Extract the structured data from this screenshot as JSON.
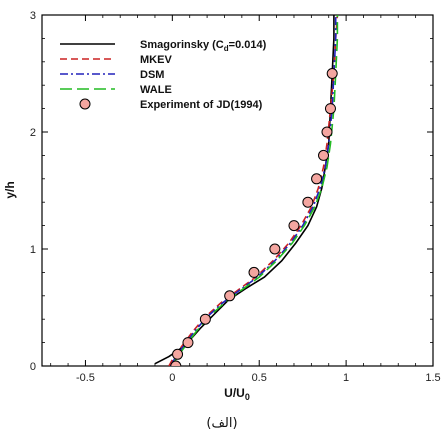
{
  "chart_data": {
    "type": "line",
    "xlabel": "U/U",
    "xlabel_sub": "0",
    "ylabel": "y/h",
    "xlim": [
      -0.75,
      1.5
    ],
    "ylim": [
      0,
      3
    ],
    "x_ticks": [
      -0.5,
      0,
      0.5,
      1,
      1.5
    ],
    "x_tick_labels": [
      "-0.5",
      "0",
      "0.5",
      "1",
      "1.5"
    ],
    "y_ticks": [
      0,
      1,
      2,
      3
    ],
    "y_tick_labels": [
      "0",
      "1",
      "2",
      "3"
    ],
    "legend_position": "top-left",
    "caption": "(الف)",
    "series": [
      {
        "name": "Smagorinsky (C",
        "name_sub": "d",
        "name_suffix": "=0.014)",
        "style": "solid",
        "color": "#000000",
        "points": [
          [
            -0.1,
            0.02
          ],
          [
            -0.02,
            0.08
          ],
          [
            0.04,
            0.14
          ],
          [
            0.1,
            0.22
          ],
          [
            0.16,
            0.32
          ],
          [
            0.24,
            0.44
          ],
          [
            0.32,
            0.56
          ],
          [
            0.42,
            0.66
          ],
          [
            0.53,
            0.76
          ],
          [
            0.63,
            0.9
          ],
          [
            0.71,
            1.05
          ],
          [
            0.78,
            1.2
          ],
          [
            0.83,
            1.36
          ],
          [
            0.86,
            1.52
          ],
          [
            0.88,
            1.7
          ],
          [
            0.9,
            1.9
          ],
          [
            0.91,
            2.2
          ],
          [
            0.92,
            2.5
          ],
          [
            0.93,
            2.8
          ],
          [
            0.93,
            3.0
          ]
        ]
      },
      {
        "name": "MKEV",
        "style": "dashed",
        "color": "#cc2222",
        "points": [
          [
            -0.02,
            0.0
          ],
          [
            0.01,
            0.08
          ],
          [
            0.06,
            0.18
          ],
          [
            0.12,
            0.3
          ],
          [
            0.19,
            0.42
          ],
          [
            0.28,
            0.54
          ],
          [
            0.37,
            0.64
          ],
          [
            0.48,
            0.76
          ],
          [
            0.58,
            0.9
          ],
          [
            0.67,
            1.05
          ],
          [
            0.74,
            1.2
          ],
          [
            0.8,
            1.36
          ],
          [
            0.84,
            1.52
          ],
          [
            0.87,
            1.7
          ],
          [
            0.89,
            1.9
          ],
          [
            0.91,
            2.2
          ],
          [
            0.93,
            2.5
          ],
          [
            0.94,
            2.8
          ],
          [
            0.95,
            3.0
          ]
        ]
      },
      {
        "name": "DSM",
        "style": "dashdot",
        "color": "#2222bb",
        "points": [
          [
            -0.01,
            0.0
          ],
          [
            0.02,
            0.08
          ],
          [
            0.07,
            0.18
          ],
          [
            0.13,
            0.3
          ],
          [
            0.2,
            0.42
          ],
          [
            0.29,
            0.54
          ],
          [
            0.38,
            0.64
          ],
          [
            0.49,
            0.76
          ],
          [
            0.59,
            0.9
          ],
          [
            0.68,
            1.05
          ],
          [
            0.75,
            1.2
          ],
          [
            0.81,
            1.36
          ],
          [
            0.85,
            1.52
          ],
          [
            0.88,
            1.7
          ],
          [
            0.9,
            1.9
          ],
          [
            0.92,
            2.2
          ],
          [
            0.93,
            2.5
          ],
          [
            0.94,
            2.8
          ],
          [
            0.94,
            3.0
          ]
        ]
      },
      {
        "name": "WALE",
        "style": "longdash",
        "color": "#22bb22",
        "points": [
          [
            0.0,
            0.0
          ],
          [
            0.03,
            0.08
          ],
          [
            0.08,
            0.18
          ],
          [
            0.14,
            0.3
          ],
          [
            0.21,
            0.42
          ],
          [
            0.3,
            0.54
          ],
          [
            0.39,
            0.64
          ],
          [
            0.5,
            0.76
          ],
          [
            0.6,
            0.9
          ],
          [
            0.69,
            1.05
          ],
          [
            0.76,
            1.2
          ],
          [
            0.82,
            1.36
          ],
          [
            0.86,
            1.52
          ],
          [
            0.89,
            1.7
          ],
          [
            0.91,
            1.9
          ],
          [
            0.93,
            2.2
          ],
          [
            0.94,
            2.5
          ],
          [
            0.95,
            2.8
          ],
          [
            0.95,
            3.0
          ]
        ]
      },
      {
        "name": "Experiment of JD(1994)",
        "style": "marker",
        "color": "#f4a6a0",
        "stroke": "#000000",
        "points": [
          [
            0.02,
            0.0
          ],
          [
            0.03,
            0.1
          ],
          [
            0.09,
            0.2
          ],
          [
            0.19,
            0.4
          ],
          [
            0.33,
            0.6
          ],
          [
            0.47,
            0.8
          ],
          [
            0.59,
            1.0
          ],
          [
            0.7,
            1.2
          ],
          [
            0.78,
            1.4
          ],
          [
            0.83,
            1.6
          ],
          [
            0.87,
            1.8
          ],
          [
            0.89,
            2.0
          ],
          [
            0.91,
            2.2
          ],
          [
            0.92,
            2.5
          ]
        ]
      }
    ]
  }
}
